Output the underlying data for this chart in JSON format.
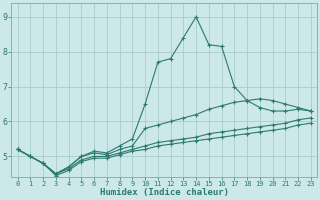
{
  "background_color": "#cce8e8",
  "grid_color": "#aacccc",
  "line_color": "#2d7a6e",
  "xlabel": "Humidex (Indice chaleur)",
  "ylim": [
    4.4,
    9.4
  ],
  "xlim": [
    -0.5,
    23.5
  ],
  "yticks": [
    5,
    6,
    7,
    8,
    9
  ],
  "xticks": [
    0,
    1,
    2,
    3,
    4,
    5,
    6,
    7,
    8,
    9,
    10,
    11,
    12,
    13,
    14,
    15,
    16,
    17,
    18,
    19,
    20,
    21,
    22,
    23
  ],
  "series": [
    {
      "x": [
        0,
        1,
        2,
        3,
        4,
        5,
        6,
        7,
        8,
        9,
        10,
        11,
        12,
        13,
        14,
        15,
        16,
        17,
        18,
        19,
        20,
        21,
        22,
        23
      ],
      "y": [
        5.2,
        5.0,
        4.8,
        4.5,
        4.7,
        5.0,
        5.15,
        5.1,
        5.3,
        5.5,
        6.5,
        7.7,
        7.8,
        8.4,
        9.0,
        8.2,
        8.15,
        7.0,
        6.6,
        6.4,
        6.3,
        6.3,
        6.35,
        6.3
      ]
    },
    {
      "x": [
        0,
        1,
        2,
        3,
        4,
        5,
        6,
        7,
        8,
        9,
        10,
        11,
        12,
        13,
        14,
        15,
        16,
        17,
        18,
        19,
        20,
        21,
        22,
        23
      ],
      "y": [
        5.2,
        5.0,
        4.8,
        4.5,
        4.7,
        5.0,
        5.1,
        5.05,
        5.2,
        5.3,
        5.8,
        5.9,
        6.0,
        6.1,
        6.2,
        6.35,
        6.45,
        6.55,
        6.6,
        6.65,
        6.6,
        6.5,
        6.4,
        6.3
      ]
    },
    {
      "x": [
        0,
        1,
        2,
        3,
        4,
        5,
        6,
        7,
        8,
        9,
        10,
        11,
        12,
        13,
        14,
        15,
        16,
        17,
        18,
        19,
        20,
        21,
        22,
        23
      ],
      "y": [
        5.2,
        5.0,
        4.8,
        4.5,
        4.65,
        4.9,
        5.0,
        5.0,
        5.1,
        5.2,
        5.3,
        5.4,
        5.45,
        5.5,
        5.55,
        5.65,
        5.7,
        5.75,
        5.8,
        5.85,
        5.9,
        5.95,
        6.05,
        6.1
      ]
    },
    {
      "x": [
        0,
        1,
        2,
        3,
        4,
        5,
        6,
        7,
        8,
        9,
        10,
        11,
        12,
        13,
        14,
        15,
        16,
        17,
        18,
        19,
        20,
        21,
        22,
        23
      ],
      "y": [
        5.2,
        5.0,
        4.8,
        4.45,
        4.6,
        4.85,
        4.95,
        4.95,
        5.05,
        5.15,
        5.2,
        5.3,
        5.35,
        5.4,
        5.45,
        5.5,
        5.55,
        5.6,
        5.65,
        5.7,
        5.75,
        5.8,
        5.9,
        5.95
      ]
    }
  ]
}
